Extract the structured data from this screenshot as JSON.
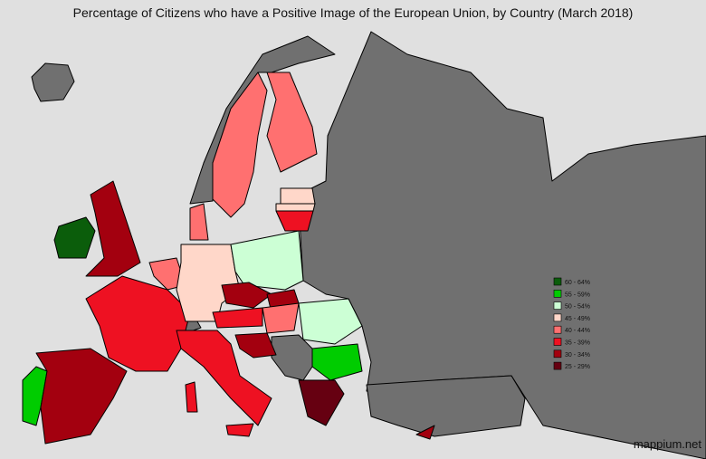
{
  "title": "Percentage of Citizens who have a Positive Image of the European Union, by Country (March 2018)",
  "legend": [
    {
      "label": "60 - 64%",
      "color": "#0b5d0b"
    },
    {
      "label": "55 - 59%",
      "color": "#00cc00"
    },
    {
      "label": "50 - 54%",
      "color": "#ccffd5"
    },
    {
      "label": "45 - 49%",
      "color": "#ffd7c9"
    },
    {
      "label": "40 - 44%",
      "color": "#ff7070"
    },
    {
      "label": "35 - 39%",
      "color": "#ee1122"
    },
    {
      "label": "30 - 34%",
      "color": "#a3000f"
    },
    {
      "label": "25 - 29%",
      "color": "#660011"
    }
  ],
  "watermark": "mappium.net"
}
